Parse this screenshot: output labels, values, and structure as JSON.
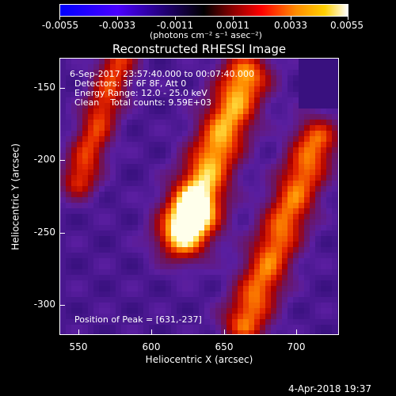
{
  "colorbar": {
    "tick_labels": [
      "-0.0055",
      "-0.0033",
      "-0.0011",
      "0.0011",
      "0.0033",
      "0.0055"
    ],
    "units_label": "(photons cm⁻² s⁻¹ asec⁻²)"
  },
  "plot": {
    "title": "Reconstructed RHESSI Image",
    "info_lines": [
      "6-Sep-2017 23:57:40.000 to 00:07:40.000",
      "Detectors: 3F 6F 8F, Att 0",
      "Energy Range: 12.0 - 25.0 keV",
      "Clean    Total counts: 9.59E+03"
    ],
    "peak_label": "Position of Peak = [631,-237]",
    "xlabel": "Heliocentric X (arcsec)",
    "ylabel": "Heliocentric Y (arcsec)",
    "x_ticks": [
      "550",
      "600",
      "650",
      "700"
    ],
    "y_ticks": [
      "-150",
      "-200",
      "-250",
      "-300"
    ]
  },
  "footer": {
    "timestamp": "4-Apr-2018 19:37"
  }
}
